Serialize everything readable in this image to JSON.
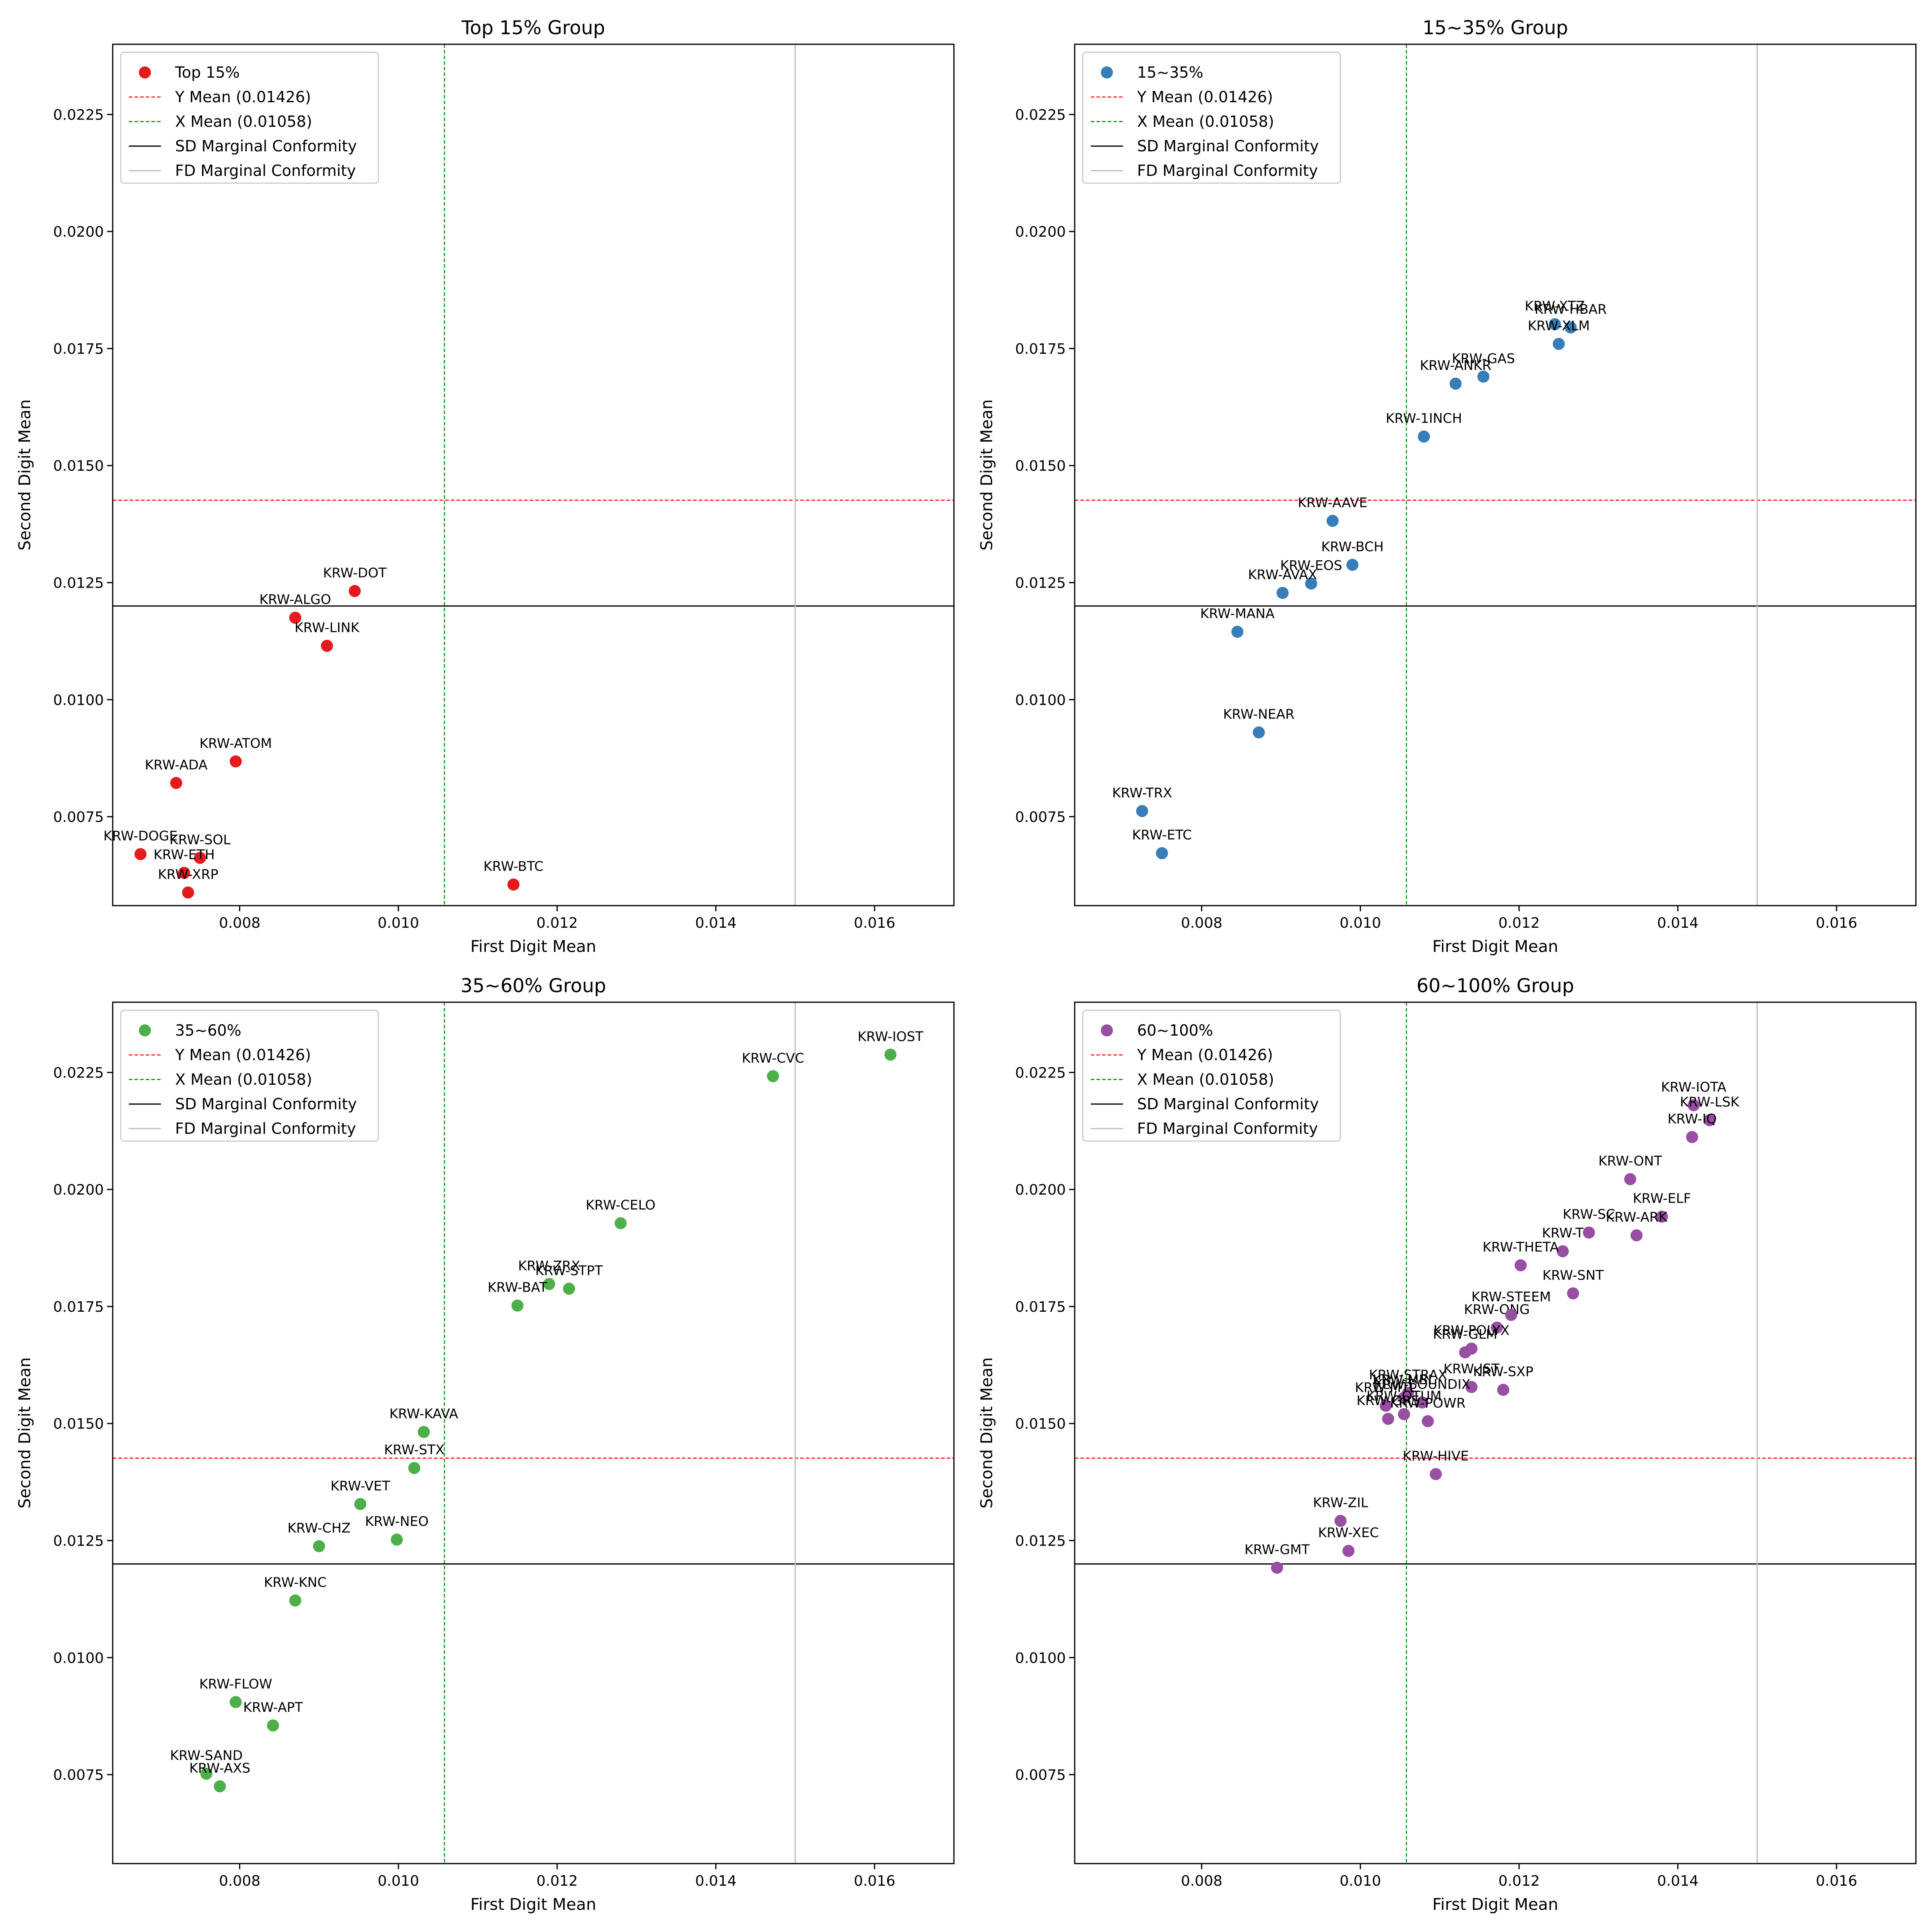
{
  "chart_data": [
    {
      "type": "scatter",
      "title": "Top 15% Group",
      "xlabel": "First Digit Mean",
      "ylabel": "Second Digit Mean",
      "xlim": [
        0.0064,
        0.017
      ],
      "ylim": [
        0.0056,
        0.024
      ],
      "xticks": [
        0.008,
        0.01,
        0.012,
        0.014,
        0.016
      ],
      "yticks": [
        0.0075,
        0.01,
        0.0125,
        0.015,
        0.0175,
        0.02,
        0.0225
      ],
      "xtick_labels": [
        "0.008",
        "0.010",
        "0.012",
        "0.014",
        "0.016"
      ],
      "ytick_labels": [
        "0.0075",
        "0.0100",
        "0.0125",
        "0.0150",
        "0.0175",
        "0.0200",
        "0.0225"
      ],
      "legend_position": "upper-left",
      "grid": false,
      "color": "#e41a1c",
      "series": [
        {
          "name": "Top 15%",
          "points": [
            {
              "label": "KRW-DOT",
              "x": 0.00945,
              "y": 0.01232
            },
            {
              "label": "KRW-ALGO",
              "x": 0.0087,
              "y": 0.01175
            },
            {
              "label": "KRW-LINK",
              "x": 0.0091,
              "y": 0.01115
            },
            {
              "label": "KRW-ATOM",
              "x": 0.00795,
              "y": 0.00868
            },
            {
              "label": "KRW-ADA",
              "x": 0.0072,
              "y": 0.00822
            },
            {
              "label": "KRW-DOGE",
              "x": 0.00675,
              "y": 0.0067
            },
            {
              "label": "KRW-SOL",
              "x": 0.0075,
              "y": 0.00662
            },
            {
              "label": "KRW-ETH",
              "x": 0.0073,
              "y": 0.0063
            },
            {
              "label": "KRW-XRP",
              "x": 0.00735,
              "y": 0.00588
            },
            {
              "label": "KRW-BTC",
              "x": 0.01145,
              "y": 0.00605
            }
          ]
        }
      ],
      "reference_lines": [
        {
          "name": "Y Mean (0.01426)",
          "orientation": "horizontal",
          "value": 0.01426,
          "color": "#ff0000",
          "style": "dashed"
        },
        {
          "name": "X Mean (0.01058)",
          "orientation": "vertical",
          "value": 0.01058,
          "color": "#008000",
          "style": "dashed"
        },
        {
          "name": "SD Marginal Conformity",
          "orientation": "horizontal",
          "value": 0.012,
          "color": "#000000",
          "style": "solid"
        },
        {
          "name": "FD Marginal Conformity",
          "orientation": "vertical",
          "value": 0.015,
          "color": "#bbbbbb",
          "style": "solid"
        }
      ]
    },
    {
      "type": "scatter",
      "title": "15~35% Group",
      "xlabel": "First Digit Mean",
      "ylabel": "Second Digit Mean",
      "xlim": [
        0.0064,
        0.017
      ],
      "ylim": [
        0.0056,
        0.024
      ],
      "xticks": [
        0.008,
        0.01,
        0.012,
        0.014,
        0.016
      ],
      "yticks": [
        0.0075,
        0.01,
        0.0125,
        0.015,
        0.0175,
        0.02,
        0.0225
      ],
      "xtick_labels": [
        "0.008",
        "0.010",
        "0.012",
        "0.014",
        "0.016"
      ],
      "ytick_labels": [
        "0.0075",
        "0.0100",
        "0.0125",
        "0.0150",
        "0.0175",
        "0.0200",
        "0.0225"
      ],
      "legend_position": "upper-left",
      "grid": false,
      "color": "#377eb8",
      "series": [
        {
          "name": "15~35%",
          "points": [
            {
              "label": "KRW-XTZ",
              "x": 0.01245,
              "y": 0.01802
            },
            {
              "label": "KRW-HBAR",
              "x": 0.01265,
              "y": 0.01795
            },
            {
              "label": "KRW-XLM",
              "x": 0.0125,
              "y": 0.0176
            },
            {
              "label": "KRW-GAS",
              "x": 0.01155,
              "y": 0.0169
            },
            {
              "label": "KRW-ANKR",
              "x": 0.0112,
              "y": 0.01675
            },
            {
              "label": "KRW-1INCH",
              "x": 0.0108,
              "y": 0.01562
            },
            {
              "label": "KRW-AAVE",
              "x": 0.00965,
              "y": 0.01382
            },
            {
              "label": "KRW-BCH",
              "x": 0.0099,
              "y": 0.01288
            },
            {
              "label": "KRW-EOS",
              "x": 0.00938,
              "y": 0.01248
            },
            {
              "label": "KRW-AVAX",
              "x": 0.00902,
              "y": 0.01228
            },
            {
              "label": "KRW-MANA",
              "x": 0.00845,
              "y": 0.01145
            },
            {
              "label": "KRW-NEAR",
              "x": 0.00872,
              "y": 0.0093
            },
            {
              "label": "KRW-TRX",
              "x": 0.00725,
              "y": 0.00762
            },
            {
              "label": "KRW-ETC",
              "x": 0.0075,
              "y": 0.00672
            }
          ]
        }
      ],
      "reference_lines": [
        {
          "name": "Y Mean (0.01426)",
          "orientation": "horizontal",
          "value": 0.01426,
          "color": "#ff0000",
          "style": "dashed"
        },
        {
          "name": "X Mean (0.01058)",
          "orientation": "vertical",
          "value": 0.01058,
          "color": "#008000",
          "style": "dashed"
        },
        {
          "name": "SD Marginal Conformity",
          "orientation": "horizontal",
          "value": 0.012,
          "color": "#000000",
          "style": "solid"
        },
        {
          "name": "FD Marginal Conformity",
          "orientation": "vertical",
          "value": 0.015,
          "color": "#bbbbbb",
          "style": "solid"
        }
      ]
    },
    {
      "type": "scatter",
      "title": "35~60% Group",
      "xlabel": "First Digit Mean",
      "ylabel": "Second Digit Mean",
      "xlim": [
        0.0064,
        0.017
      ],
      "ylim": [
        0.0056,
        0.024
      ],
      "xticks": [
        0.008,
        0.01,
        0.012,
        0.014,
        0.016
      ],
      "yticks": [
        0.0075,
        0.01,
        0.0125,
        0.015,
        0.0175,
        0.02,
        0.0225
      ],
      "xtick_labels": [
        "0.008",
        "0.010",
        "0.012",
        "0.014",
        "0.016"
      ],
      "ytick_labels": [
        "0.0075",
        "0.0100",
        "0.0125",
        "0.0150",
        "0.0175",
        "0.0200",
        "0.0225"
      ],
      "legend_position": "upper-left",
      "grid": false,
      "color": "#4daf4a",
      "series": [
        {
          "name": "35~60%",
          "points": [
            {
              "label": "KRW-IOST",
              "x": 0.0162,
              "y": 0.02288
            },
            {
              "label": "KRW-CVC",
              "x": 0.01472,
              "y": 0.02242
            },
            {
              "label": "KRW-CELO",
              "x": 0.0128,
              "y": 0.01928
            },
            {
              "label": "KRW-ZRX",
              "x": 0.0119,
              "y": 0.01798
            },
            {
              "label": "KRW-STPT",
              "x": 0.01215,
              "y": 0.01788
            },
            {
              "label": "KRW-BAT",
              "x": 0.0115,
              "y": 0.01752
            },
            {
              "label": "KRW-KAVA",
              "x": 0.01032,
              "y": 0.01482
            },
            {
              "label": "KRW-STX",
              "x": 0.0102,
              "y": 0.01405
            },
            {
              "label": "KRW-VET",
              "x": 0.00952,
              "y": 0.01328
            },
            {
              "label": "KRW-NEO",
              "x": 0.00998,
              "y": 0.01252
            },
            {
              "label": "KRW-CHZ",
              "x": 0.009,
              "y": 0.01238
            },
            {
              "label": "KRW-KNC",
              "x": 0.0087,
              "y": 0.01122
            },
            {
              "label": "KRW-FLOW",
              "x": 0.00795,
              "y": 0.00905
            },
            {
              "label": "KRW-APT",
              "x": 0.00842,
              "y": 0.00855
            },
            {
              "label": "KRW-SAND",
              "x": 0.00758,
              "y": 0.00752
            },
            {
              "label": "KRW-AXS",
              "x": 0.00775,
              "y": 0.00725
            }
          ]
        }
      ],
      "reference_lines": [
        {
          "name": "Y Mean (0.01426)",
          "orientation": "horizontal",
          "value": 0.01426,
          "color": "#ff0000",
          "style": "dashed"
        },
        {
          "name": "X Mean (0.01058)",
          "orientation": "vertical",
          "value": 0.01058,
          "color": "#008000",
          "style": "dashed"
        },
        {
          "name": "SD Marginal Conformity",
          "orientation": "horizontal",
          "value": 0.012,
          "color": "#000000",
          "style": "solid"
        },
        {
          "name": "FD Marginal Conformity",
          "orientation": "vertical",
          "value": 0.015,
          "color": "#bbbbbb",
          "style": "solid"
        }
      ]
    },
    {
      "type": "scatter",
      "title": "60~100% Group",
      "xlabel": "First Digit Mean",
      "ylabel": "Second Digit Mean",
      "xlim": [
        0.0064,
        0.017
      ],
      "ylim": [
        0.0056,
        0.024
      ],
      "xticks": [
        0.008,
        0.01,
        0.012,
        0.014,
        0.016
      ],
      "yticks": [
        0.0075,
        0.01,
        0.0125,
        0.015,
        0.0175,
        0.02,
        0.0225
      ],
      "xtick_labels": [
        "0.008",
        "0.010",
        "0.012",
        "0.014",
        "0.016"
      ],
      "ytick_labels": [
        "0.0075",
        "0.0100",
        "0.0125",
        "0.0150",
        "0.0175",
        "0.0200",
        "0.0225"
      ],
      "legend_position": "upper-left",
      "grid": false,
      "color": "#984ea3",
      "series": [
        {
          "name": "60~100%",
          "points": [
            {
              "label": "KRW-IOTA",
              "x": 0.0142,
              "y": 0.0218
            },
            {
              "label": "KRW-LSK",
              "x": 0.0144,
              "y": 0.02148
            },
            {
              "label": "KRW-IQ",
              "x": 0.01418,
              "y": 0.02112
            },
            {
              "label": "KRW-ONT",
              "x": 0.0134,
              "y": 0.02022
            },
            {
              "label": "KRW-ELF",
              "x": 0.0138,
              "y": 0.01942
            },
            {
              "label": "KRW-SC",
              "x": 0.01288,
              "y": 0.01908
            },
            {
              "label": "KRW-ARK",
              "x": 0.01348,
              "y": 0.01902
            },
            {
              "label": "KRW-T",
              "x": 0.01255,
              "y": 0.01868
            },
            {
              "label": "KRW-THETA",
              "x": 0.01202,
              "y": 0.01838
            },
            {
              "label": "KRW-SNT",
              "x": 0.01268,
              "y": 0.01778
            },
            {
              "label": "KRW-ONG",
              "x": 0.01172,
              "y": 0.01705
            },
            {
              "label": "KRW-STEEM",
              "x": 0.0119,
              "y": 0.01732
            },
            {
              "label": "KRW-POLYX",
              "x": 0.0114,
              "y": 0.0166
            },
            {
              "label": "KRW-GLM",
              "x": 0.01132,
              "y": 0.01652
            },
            {
              "label": "KRW-JST",
              "x": 0.0114,
              "y": 0.01578
            },
            {
              "label": "KRW-SXP",
              "x": 0.0118,
              "y": 0.01572
            },
            {
              "label": "KRW-STRAX",
              "x": 0.0106,
              "y": 0.01565
            },
            {
              "label": "KRW-MTL",
              "x": 0.01032,
              "y": 0.01538
            },
            {
              "label": "KRW-MBL",
              "x": 0.01055,
              "y": 0.01555
            },
            {
              "label": "KRW-BOUNDIX",
              "x": 0.01078,
              "y": 0.01545
            },
            {
              "label": "KRW-GRS",
              "x": 0.01035,
              "y": 0.0151
            },
            {
              "label": "KRW-QTUM",
              "x": 0.01055,
              "y": 0.0152
            },
            {
              "label": "KRW-POWR",
              "x": 0.01085,
              "y": 0.01505
            },
            {
              "label": "KRW-HIVE",
              "x": 0.01095,
              "y": 0.01392
            },
            {
              "label": "KRW-ZIL",
              "x": 0.00975,
              "y": 0.01292
            },
            {
              "label": "KRW-XEC",
              "x": 0.00985,
              "y": 0.01228
            },
            {
              "label": "KRW-GMT",
              "x": 0.00895,
              "y": 0.01192
            }
          ]
        }
      ],
      "reference_lines": [
        {
          "name": "Y Mean (0.01426)",
          "orientation": "horizontal",
          "value": 0.01426,
          "color": "#ff0000",
          "style": "dashed"
        },
        {
          "name": "X Mean (0.01058)",
          "orientation": "vertical",
          "value": 0.01058,
          "color": "#008000",
          "style": "dashed"
        },
        {
          "name": "SD Marginal Conformity",
          "orientation": "horizontal",
          "value": 0.012,
          "color": "#000000",
          "style": "solid"
        },
        {
          "name": "FD Marginal Conformity",
          "orientation": "vertical",
          "value": 0.015,
          "color": "#bbbbbb",
          "style": "solid"
        }
      ]
    }
  ]
}
